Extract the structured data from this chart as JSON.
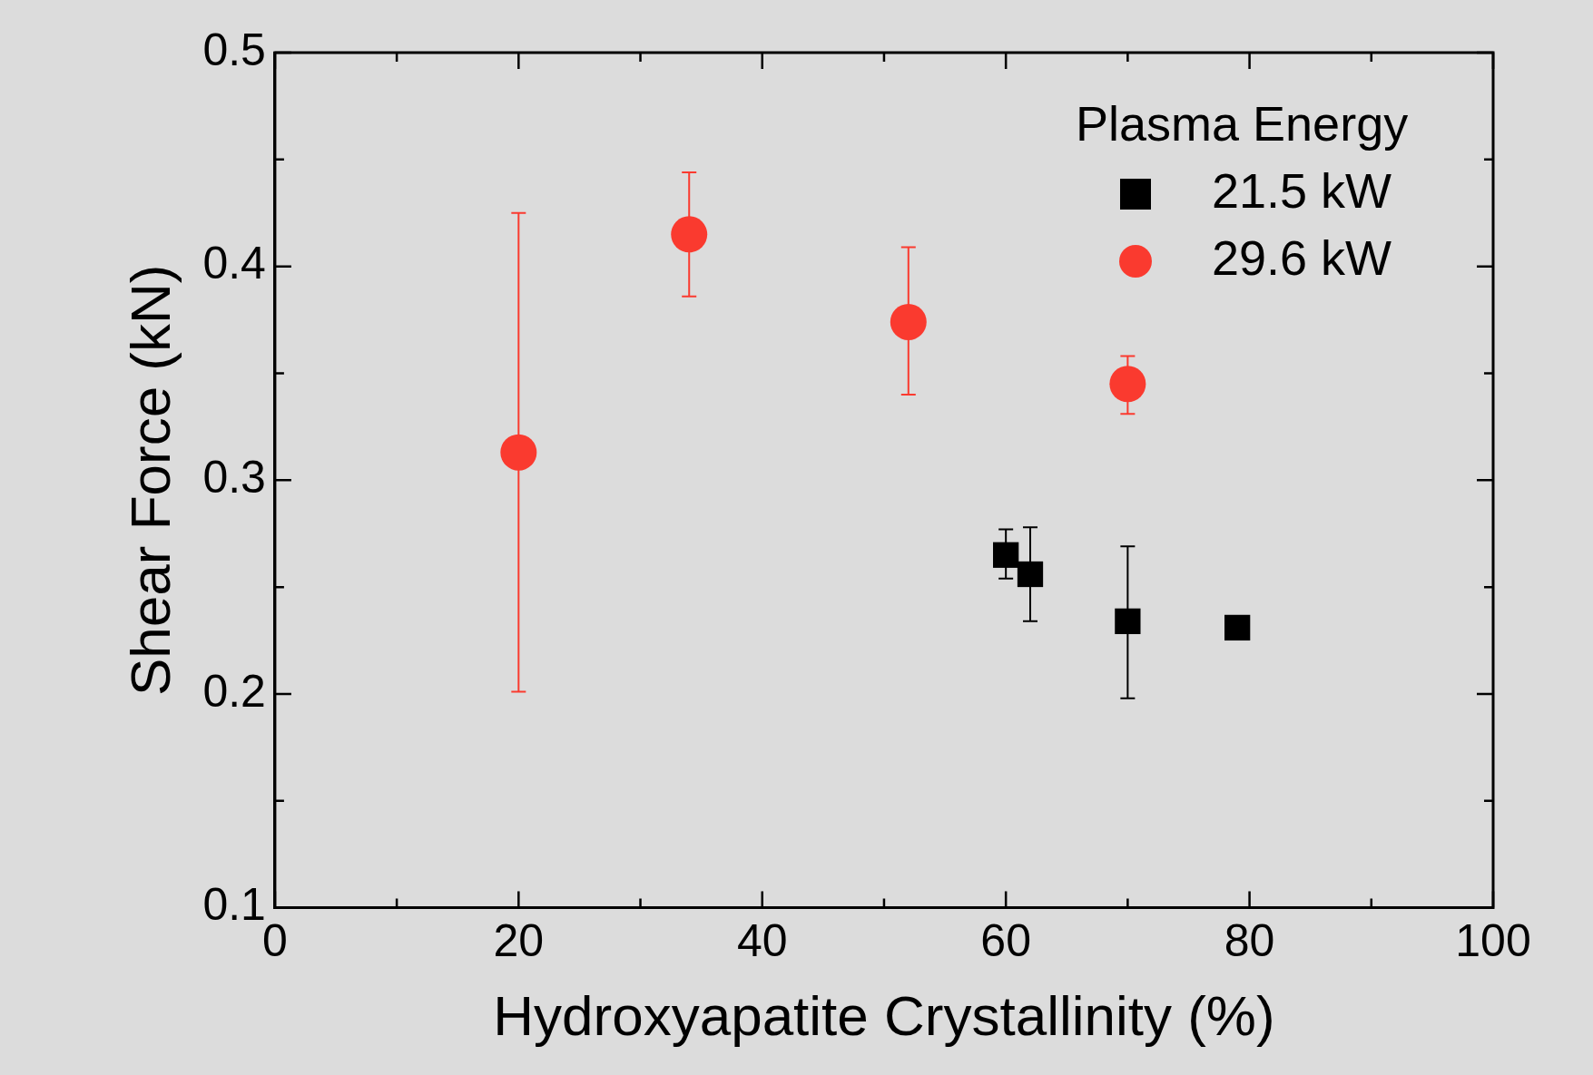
{
  "chart_data": {
    "type": "scatter",
    "xlabel": "Hydroxyapatite Crystallinity (%)",
    "ylabel": "Shear Force (kN)",
    "legend_title": "Plasma Energy",
    "legend": "top right",
    "grid": false,
    "xlim": [
      0,
      100
    ],
    "xticks": [
      0,
      {
        "value": 10,
        "label": null
      },
      20,
      {
        "value": 30,
        "label": null
      },
      40,
      {
        "value": 50,
        "label": null
      },
      60,
      {
        "value": 70,
        "label": null
      },
      80,
      {
        "value": 90,
        "label": null
      },
      100
    ],
    "ylim": [
      0.1,
      0.5
    ],
    "yticks": [
      0.1,
      {
        "value": 0.15,
        "label": null
      },
      0.2,
      {
        "value": 0.25,
        "label": null
      },
      0.3,
      {
        "value": 0.35,
        "label": null
      },
      0.4,
      {
        "value": 0.45,
        "label": null
      },
      0.5
    ],
    "series": [
      {
        "name": "21.5 kW",
        "color": "#000000",
        "marker": "square",
        "x": [
          60,
          62,
          70,
          79
        ],
        "values": [
          0.265,
          0.256,
          0.234,
          0.231
        ],
        "errors": [
          [
            0.254,
            0.277
          ],
          [
            0.234,
            0.278
          ],
          [
            0.198,
            0.269
          ],
          null
        ]
      },
      {
        "name": "29.6 kW",
        "color": "#fa3a2f",
        "marker": "circle",
        "x": [
          20,
          34,
          52,
          70
        ],
        "values": [
          0.313,
          0.415,
          0.374,
          0.345
        ],
        "errors": [
          [
            0.201,
            0.425
          ],
          [
            0.386,
            0.444
          ],
          [
            0.34,
            0.409
          ],
          [
            0.331,
            0.358
          ]
        ]
      }
    ]
  }
}
